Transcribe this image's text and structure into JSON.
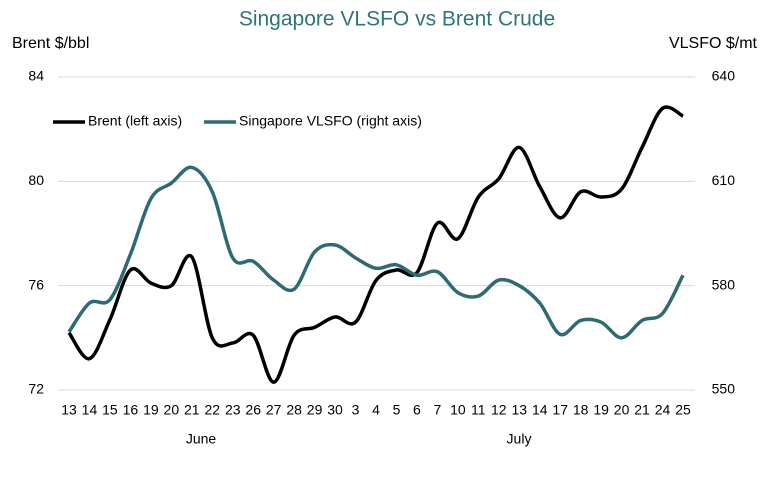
{
  "chart_data": {
    "type": "line",
    "title": "Singapore VLSFO vs Brent Crude",
    "y_label": "Brent $/bbl",
    "y2_label": "VLSFO $/mt",
    "categories": [
      "13",
      "14",
      "15",
      "16",
      "19",
      "20",
      "21",
      "22",
      "23",
      "26",
      "27",
      "28",
      "29",
      "30",
      "3",
      "4",
      "5",
      "6",
      "7",
      "10",
      "11",
      "12",
      "13",
      "14",
      "17",
      "18",
      "19",
      "20",
      "21",
      "24",
      "25"
    ],
    "x_groups": [
      "June",
      "July"
    ],
    "ylim": [
      72,
      84
    ],
    "yticks": [
      72,
      76,
      80,
      84
    ],
    "y2lim": [
      550,
      640
    ],
    "y2ticks": [
      550,
      580,
      610,
      640
    ],
    "legend": "top-left",
    "series": [
      {
        "name": "Brent (left axis)",
        "color": "#000000",
        "values": [
          74.2,
          73.2,
          74.7,
          76.6,
          76.1,
          76.0,
          77.1,
          74.0,
          73.8,
          74.1,
          72.3,
          74.1,
          74.4,
          74.8,
          74.6,
          76.2,
          76.6,
          76.5,
          78.4,
          77.8,
          79.4,
          80.1,
          81.3,
          79.8,
          78.6,
          79.6,
          79.4,
          79.7,
          81.3,
          82.8,
          82.5
        ]
      },
      {
        "name": "Singapore VLSFO (right axis)",
        "color": "#2e6b70",
        "axis": "y2",
        "values": [
          566.7,
          575,
          576,
          589,
          605,
          609.5,
          614,
          607,
          588,
          587,
          581.6,
          579,
          589.7,
          591.7,
          588,
          585,
          586,
          583,
          584,
          578,
          577,
          581.6,
          580,
          575,
          566,
          570,
          569.5,
          565,
          570,
          572,
          583
        ]
      }
    ]
  }
}
